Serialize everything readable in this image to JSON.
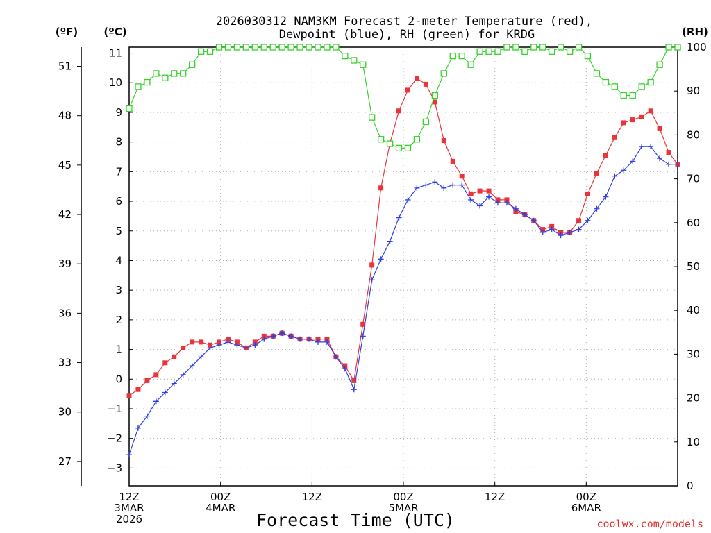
{
  "chart_data": {
    "type": "line",
    "title_line1": "2026030312 NAM3KM Forecast 2-meter Temperature (red),",
    "title_line2": "Dewpoint (blue), RH (green) for KRDG",
    "xlabel": "Forecast Time (UTC)",
    "credit": "coolwx.com/models",
    "units": {
      "fahrenheit": "(ºF)",
      "celsius": "(ºC)",
      "rh": "(RH)"
    },
    "x_range_hours": [
      0,
      72
    ],
    "x_ticks": [
      {
        "hour": 0,
        "lines": [
          "12Z",
          "3MAR",
          "2026"
        ]
      },
      {
        "hour": 12,
        "lines": [
          "00Z",
          "4MAR"
        ]
      },
      {
        "hour": 24,
        "lines": [
          "12Z"
        ]
      },
      {
        "hour": 36,
        "lines": [
          "00Z",
          "5MAR"
        ]
      },
      {
        "hour": 48,
        "lines": [
          "12Z"
        ]
      },
      {
        "hour": 60,
        "lines": [
          "00Z",
          "6MAR"
        ]
      }
    ],
    "celsius_axis": {
      "range": [
        -3.6,
        11.2
      ],
      "ticks": [
        "11",
        "10",
        "9",
        "8",
        "7",
        "6",
        "5",
        "4",
        "3",
        "2",
        "1",
        "0",
        "−1",
        "−2",
        "−3"
      ]
    },
    "fahrenheit_axis": {
      "ticks": [
        "51",
        "48",
        "45",
        "42",
        "39",
        "36",
        "33",
        "30",
        "27"
      ]
    },
    "rh_axis": {
      "range": [
        0,
        100
      ],
      "ticks": [
        "100",
        "90",
        "80",
        "70",
        "60",
        "50",
        "40",
        "30",
        "20",
        "10",
        "0"
      ]
    },
    "series": [
      {
        "name": "2-meter Temperature",
        "color": "#e8343a",
        "marker": "filled-square",
        "units": "C",
        "values": [
          -0.55,
          -0.35,
          -0.05,
          0.15,
          0.55,
          0.75,
          1.05,
          1.25,
          1.25,
          1.15,
          1.25,
          1.35,
          1.25,
          1.05,
          1.25,
          1.45,
          1.45,
          1.55,
          1.45,
          1.35,
          1.35,
          1.35,
          1.35,
          0.75,
          0.45,
          -0.05,
          1.85,
          3.85,
          6.45,
          7.95,
          9.05,
          9.75,
          10.15,
          9.95,
          9.35,
          8.05,
          7.35,
          6.85,
          6.25,
          6.35,
          6.35,
          6.05,
          6.05,
          5.65,
          5.55,
          5.35,
          5.05,
          5.15,
          4.95,
          4.95,
          5.35,
          6.25,
          6.95,
          7.55,
          8.15,
          8.65,
          8.75,
          8.85,
          9.05,
          8.45,
          7.65,
          7.25
        ]
      },
      {
        "name": "Dewpoint",
        "color": "#2f3fe0",
        "marker": "plus",
        "units": "C",
        "values": [
          -2.55,
          -1.65,
          -1.25,
          -0.75,
          -0.45,
          -0.15,
          0.15,
          0.45,
          0.75,
          1.05,
          1.15,
          1.25,
          1.15,
          1.05,
          1.15,
          1.35,
          1.45,
          1.55,
          1.45,
          1.35,
          1.35,
          1.25,
          1.25,
          0.75,
          0.35,
          -0.35,
          1.45,
          3.35,
          4.05,
          4.65,
          5.45,
          6.05,
          6.45,
          6.55,
          6.65,
          6.45,
          6.55,
          6.55,
          6.05,
          5.85,
          6.15,
          5.95,
          5.95,
          5.75,
          5.55,
          5.35,
          4.95,
          5.05,
          4.85,
          4.95,
          5.05,
          5.35,
          5.75,
          6.15,
          6.85,
          7.05,
          7.35,
          7.85,
          7.85,
          7.45,
          7.25,
          7.25
        ]
      },
      {
        "name": "RH",
        "color": "#35d229",
        "marker": "open-square",
        "units": "%",
        "values": [
          86,
          91,
          92,
          94,
          93,
          94,
          94,
          96,
          99,
          99,
          100,
          100,
          100,
          100,
          100,
          100,
          100,
          100,
          100,
          100,
          100,
          100,
          100,
          100,
          98,
          97,
          96,
          84,
          79,
          78,
          77,
          77,
          79,
          83,
          89,
          94,
          98,
          98,
          96,
          99,
          99,
          99,
          100,
          100,
          99,
          100,
          100,
          99,
          100,
          99,
          100,
          98,
          94,
          92,
          91,
          89,
          89,
          91,
          92,
          96,
          100,
          100
        ]
      }
    ]
  }
}
